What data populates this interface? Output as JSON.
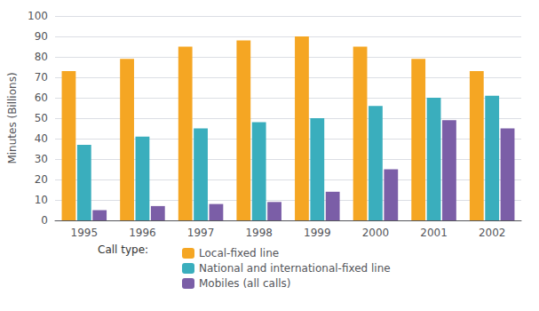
{
  "chart_data": {
    "type": "bar",
    "categories": [
      "1995",
      "1996",
      "1997",
      "1998",
      "1999",
      "2000",
      "2001",
      "2002"
    ],
    "series": [
      {
        "name": "Local-fixed line",
        "color": "#F5A623",
        "values": [
          73,
          79,
          85,
          88,
          90,
          85,
          79,
          73
        ]
      },
      {
        "name": "National and international-fixed line",
        "color": "#3AAEBD",
        "values": [
          37,
          41,
          45,
          48,
          50,
          56,
          60,
          61
        ]
      },
      {
        "name": "Mobiles (all calls)",
        "color": "#7B5EA7",
        "values": [
          5,
          7,
          8,
          9,
          14,
          25,
          49,
          45
        ]
      }
    ],
    "ylabel": "Minutes (Billions)",
    "legend_title": "Call type:",
    "legend": "bottom",
    "ylim": [
      0,
      100
    ],
    "yticks": [
      0,
      10,
      20,
      30,
      40,
      50,
      60,
      70,
      80,
      90,
      100
    ],
    "grid": true
  }
}
